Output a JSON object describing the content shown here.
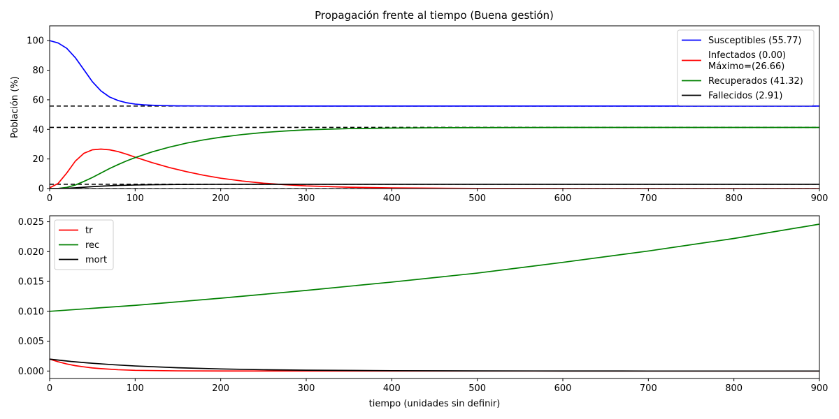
{
  "chart_data": [
    {
      "type": "line",
      "title": "Propagación frente al tiempo (Buena gestión)",
      "xlabel": "",
      "ylabel": "Población (%)",
      "xlim": [
        0,
        900
      ],
      "ylim": [
        0,
        110
      ],
      "xticks": [
        "0",
        "100",
        "200",
        "300",
        "400",
        "500",
        "600",
        "700",
        "800",
        "900"
      ],
      "yticks": [
        "0",
        "20",
        "40",
        "60",
        "80",
        "100"
      ],
      "grid": false,
      "legend_position": "top-right",
      "legend": [
        {
          "label": "Susceptibles (55.77)",
          "color": "#0000ff"
        },
        {
          "label": "Infectados (0.00)\nMáximo=(26.66)",
          "color": "#ff0000"
        },
        {
          "label": "Recuperados (41.32)",
          "color": "#008000"
        },
        {
          "label": "Fallecidos (2.91)",
          "color": "#000000"
        }
      ],
      "series": [
        {
          "color": "#0000ff",
          "x": [
            0,
            10,
            20,
            30,
            40,
            50,
            60,
            70,
            80,
            90,
            100,
            110,
            120,
            130,
            140,
            150,
            175,
            200,
            250,
            300,
            400,
            500,
            600,
            700,
            800,
            900
          ],
          "y": [
            100,
            98.4,
            94.8,
            88.5,
            80.4,
            72.2,
            66,
            61.9,
            59.5,
            58,
            57.1,
            56.6,
            56.3,
            56.1,
            56,
            55.9,
            55.85,
            55.8,
            55.78,
            55.77,
            55.77,
            55.77,
            55.77,
            55.77,
            55.77,
            55.77
          ]
        },
        {
          "color": "#ff0000",
          "x": [
            0,
            10,
            20,
            30,
            40,
            50,
            60,
            70,
            80,
            90,
            100,
            120,
            140,
            160,
            180,
            200,
            225,
            250,
            275,
            300,
            350,
            400,
            450,
            500,
            600,
            700,
            800,
            900
          ],
          "y": [
            0.5,
            3.5,
            10.5,
            18.5,
            23.8,
            26.2,
            26.66,
            26.2,
            25,
            23.2,
            21.2,
            17.5,
            14.2,
            11.4,
            9,
            7,
            5.1,
            3.6,
            2.6,
            1.8,
            0.9,
            0.45,
            0.22,
            0.1,
            0.03,
            0.01,
            0,
            0
          ]
        },
        {
          "color": "#008000",
          "x": [
            0,
            10,
            20,
            30,
            40,
            50,
            60,
            70,
            80,
            90,
            100,
            120,
            140,
            160,
            180,
            200,
            225,
            250,
            275,
            300,
            350,
            400,
            450,
            500,
            600,
            700,
            800,
            900
          ],
          "y": [
            0,
            0.1,
            0.8,
            2.4,
            4.8,
            7.5,
            10.5,
            13.5,
            16.2,
            18.7,
            20.9,
            24.8,
            28,
            30.7,
            32.9,
            34.7,
            36.5,
            37.9,
            38.9,
            39.7,
            40.5,
            40.9,
            41.1,
            41.2,
            41.3,
            41.32,
            41.32,
            41.32
          ]
        },
        {
          "color": "#000000",
          "x": [
            0,
            10,
            20,
            30,
            40,
            50,
            60,
            70,
            80,
            100,
            120,
            150,
            200,
            250,
            300,
            400,
            500,
            600,
            700,
            800,
            900
          ],
          "y": [
            0,
            0.05,
            0.2,
            0.5,
            0.9,
            1.3,
            1.6,
            1.9,
            2.1,
            2.4,
            2.6,
            2.75,
            2.85,
            2.88,
            2.9,
            2.91,
            2.91,
            2.91,
            2.91,
            2.91,
            2.91
          ]
        }
      ],
      "reference_lines": [
        55.77,
        41.32,
        2.91,
        0
      ]
    },
    {
      "type": "line",
      "title": "",
      "xlabel": "tiempo (unidades sin definir)",
      "ylabel": "",
      "xlim": [
        0,
        900
      ],
      "ylim": [
        -0.00125,
        0.026
      ],
      "xticks": [
        "0",
        "100",
        "200",
        "300",
        "400",
        "500",
        "600",
        "700",
        "800",
        "900"
      ],
      "yticks": [
        "0.000",
        "0.005",
        "0.010",
        "0.015",
        "0.020",
        "0.025"
      ],
      "grid": false,
      "legend_position": "top-left",
      "legend": [
        {
          "label": "tr",
          "color": "#ff0000"
        },
        {
          "label": "rec",
          "color": "#008000"
        },
        {
          "label": "mort",
          "color": "#000000"
        }
      ],
      "series": [
        {
          "color": "#ff0000",
          "x": [
            0,
            10,
            20,
            30,
            40,
            50,
            60,
            80,
            100,
            150,
            200,
            300,
            400,
            500,
            600,
            700,
            800,
            900
          ],
          "y": [
            0.002,
            0.00155,
            0.00118,
            0.0009,
            0.0007,
            0.00052,
            0.0004,
            0.00022,
            0.00012,
            3e-05,
            1e-05,
            0,
            0,
            0,
            0,
            0,
            0,
            0
          ]
        },
        {
          "color": "#008000",
          "x": [
            0,
            100,
            200,
            300,
            400,
            500,
            600,
            700,
            800,
            900
          ],
          "y": [
            0.01,
            0.011,
            0.0122,
            0.0135,
            0.0149,
            0.0164,
            0.0182,
            0.0201,
            0.0222,
            0.0246
          ]
        },
        {
          "color": "#000000",
          "x": [
            0,
            25,
            50,
            75,
            100,
            150,
            200,
            250,
            300,
            400,
            500,
            600,
            700,
            800,
            900
          ],
          "y": [
            0.002,
            0.0016,
            0.0013,
            0.00105,
            0.00085,
            0.00055,
            0.00035,
            0.00022,
            0.00014,
            6e-05,
            2e-05,
            1e-05,
            0,
            0,
            0
          ]
        }
      ]
    }
  ]
}
